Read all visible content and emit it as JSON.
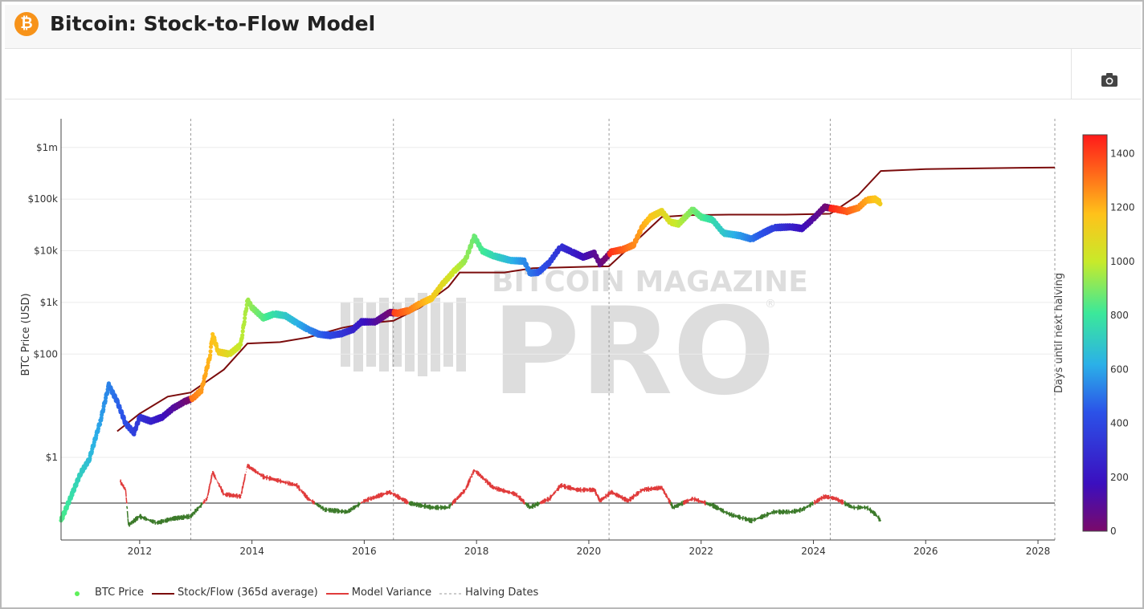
{
  "header": {
    "title": "Bitcoin: Stock-to-Flow Model",
    "logo_icon": "bitcoin-icon"
  },
  "toolbar": {
    "camera_icon": "camera-icon"
  },
  "watermark": {
    "line1": "BITCOIN MAGAZINE",
    "line2": "PRO"
  },
  "colors": {
    "price_low": "#7a0a6a",
    "price_high": "#ff1a1a",
    "sf": "#7b0c0c",
    "variance_pos": "#e03b3b",
    "variance_neg": "#3c7a2a",
    "halving": "#999999"
  },
  "chart_data": {
    "type": "scatter",
    "title": "",
    "ylabel": "BTC Price (USD)",
    "colorbar_label": "Days until next halving",
    "x_ticks": [
      "2012",
      "2014",
      "2016",
      "2018",
      "2020",
      "2022",
      "2024",
      "2026",
      "2028"
    ],
    "y_ticks": [
      "$1",
      "$100",
      "$1k",
      "$10k",
      "$100k",
      "$1m"
    ],
    "colorbar_ticks": [
      "0",
      "200",
      "400",
      "600",
      "800",
      "1000",
      "1200",
      "1400"
    ],
    "xlim": [
      2010.6,
      2028.3
    ],
    "ylim_log10": [
      -1.6,
      6.4
    ],
    "colorbar_range": [
      0,
      1470
    ],
    "halving_dates": [
      2012.91,
      2016.52,
      2020.36,
      2024.3,
      2028.3
    ],
    "series": [
      {
        "name": "BTC Price",
        "points": [
          [
            2010.6,
            0.06
          ],
          [
            2010.8,
            0.2
          ],
          [
            2010.95,
            0.5
          ],
          [
            2011.1,
            0.9
          ],
          [
            2011.3,
            5
          ],
          [
            2011.45,
            25
          ],
          [
            2011.6,
            12
          ],
          [
            2011.75,
            4.5
          ],
          [
            2011.9,
            3
          ],
          [
            2012.0,
            6
          ],
          [
            2012.2,
            5
          ],
          [
            2012.4,
            6
          ],
          [
            2012.6,
            9
          ],
          [
            2012.8,
            12
          ],
          [
            2012.95,
            14
          ],
          [
            2013.1,
            20
          ],
          [
            2013.25,
            90
          ],
          [
            2013.3,
            240
          ],
          [
            2013.4,
            110
          ],
          [
            2013.6,
            100
          ],
          [
            2013.8,
            150
          ],
          [
            2013.92,
            1100
          ],
          [
            2014.0,
            800
          ],
          [
            2014.2,
            500
          ],
          [
            2014.4,
            600
          ],
          [
            2014.6,
            550
          ],
          [
            2014.8,
            400
          ],
          [
            2015.0,
            300
          ],
          [
            2015.2,
            240
          ],
          [
            2015.4,
            230
          ],
          [
            2015.6,
            250
          ],
          [
            2015.8,
            300
          ],
          [
            2015.95,
            420
          ],
          [
            2016.2,
            420
          ],
          [
            2016.45,
            640
          ],
          [
            2016.6,
            620
          ],
          [
            2016.8,
            700
          ],
          [
            2017.0,
            950
          ],
          [
            2017.2,
            1200
          ],
          [
            2017.4,
            2300
          ],
          [
            2017.6,
            4000
          ],
          [
            2017.8,
            6500
          ],
          [
            2017.96,
            19000
          ],
          [
            2018.1,
            10000
          ],
          [
            2018.3,
            8000
          ],
          [
            2018.6,
            6500
          ],
          [
            2018.85,
            6300
          ],
          [
            2018.95,
            3700
          ],
          [
            2019.1,
            3800
          ],
          [
            2019.3,
            6000
          ],
          [
            2019.5,
            12000
          ],
          [
            2019.7,
            9500
          ],
          [
            2019.9,
            7500
          ],
          [
            2020.1,
            9000
          ],
          [
            2020.2,
            5500
          ],
          [
            2020.4,
            9500
          ],
          [
            2020.6,
            10500
          ],
          [
            2020.8,
            13000
          ],
          [
            2020.95,
            29000
          ],
          [
            2021.1,
            45000
          ],
          [
            2021.3,
            58000
          ],
          [
            2021.45,
            36000
          ],
          [
            2021.6,
            33000
          ],
          [
            2021.85,
            63000
          ],
          [
            2022.0,
            45000
          ],
          [
            2022.2,
            40000
          ],
          [
            2022.4,
            22000
          ],
          [
            2022.7,
            19500
          ],
          [
            2022.9,
            16800
          ],
          [
            2023.1,
            22000
          ],
          [
            2023.3,
            28000
          ],
          [
            2023.6,
            29000
          ],
          [
            2023.8,
            27000
          ],
          [
            2024.0,
            42000
          ],
          [
            2024.2,
            70000
          ],
          [
            2024.4,
            64000
          ],
          [
            2024.6,
            58000
          ],
          [
            2024.8,
            68000
          ],
          [
            2024.95,
            96000
          ],
          [
            2025.1,
            100000
          ],
          [
            2025.2,
            84000
          ]
        ]
      },
      {
        "name": "Stock/Flow (365d average)",
        "points": [
          [
            2011.6,
            3.2
          ],
          [
            2012.0,
            7
          ],
          [
            2012.5,
            15
          ],
          [
            2012.91,
            18
          ],
          [
            2013.5,
            50
          ],
          [
            2013.92,
            160
          ],
          [
            2014.5,
            170
          ],
          [
            2015.0,
            210
          ],
          [
            2015.6,
            320
          ],
          [
            2016.0,
            390
          ],
          [
            2016.52,
            440
          ],
          [
            2017.0,
            800
          ],
          [
            2017.5,
            2000
          ],
          [
            2017.7,
            3800
          ],
          [
            2018.5,
            3800
          ],
          [
            2019.0,
            4600
          ],
          [
            2020.0,
            4900
          ],
          [
            2020.36,
            5000
          ],
          [
            2020.8,
            14000
          ],
          [
            2021.3,
            45000
          ],
          [
            2021.8,
            49000
          ],
          [
            2022.5,
            50000
          ],
          [
            2023.5,
            50000
          ],
          [
            2024.3,
            52000
          ],
          [
            2024.8,
            120000
          ],
          [
            2025.2,
            350000
          ],
          [
            2026.0,
            380000
          ],
          [
            2027.0,
            395000
          ],
          [
            2028.3,
            410000
          ]
        ]
      },
      {
        "name": "Model Variance",
        "points": [
          [
            2011.65,
            0.5
          ],
          [
            2011.75,
            0.3
          ],
          [
            2011.8,
            -0.5
          ],
          [
            2012.0,
            -0.3
          ],
          [
            2012.3,
            -0.45
          ],
          [
            2012.6,
            -0.35
          ],
          [
            2012.91,
            -0.3
          ],
          [
            2013.2,
            0.1
          ],
          [
            2013.3,
            0.7
          ],
          [
            2013.5,
            0.2
          ],
          [
            2013.8,
            0.15
          ],
          [
            2013.92,
            0.85
          ],
          [
            2014.2,
            0.6
          ],
          [
            2014.5,
            0.5
          ],
          [
            2014.8,
            0.4
          ],
          [
            2015.0,
            0.1
          ],
          [
            2015.3,
            -0.15
          ],
          [
            2015.7,
            -0.2
          ],
          [
            2016.0,
            0.05
          ],
          [
            2016.45,
            0.25
          ],
          [
            2016.8,
            0.0
          ],
          [
            2017.2,
            -0.1
          ],
          [
            2017.5,
            -0.1
          ],
          [
            2017.8,
            0.3
          ],
          [
            2017.96,
            0.75
          ],
          [
            2018.3,
            0.35
          ],
          [
            2018.7,
            0.2
          ],
          [
            2018.95,
            -0.1
          ],
          [
            2019.3,
            0.1
          ],
          [
            2019.5,
            0.4
          ],
          [
            2019.8,
            0.3
          ],
          [
            2020.1,
            0.3
          ],
          [
            2020.2,
            0.05
          ],
          [
            2020.4,
            0.25
          ],
          [
            2020.7,
            0.05
          ],
          [
            2020.95,
            0.3
          ],
          [
            2021.3,
            0.35
          ],
          [
            2021.5,
            -0.1
          ],
          [
            2021.85,
            0.1
          ],
          [
            2022.2,
            -0.05
          ],
          [
            2022.5,
            -0.25
          ],
          [
            2022.9,
            -0.4
          ],
          [
            2023.3,
            -0.2
          ],
          [
            2023.6,
            -0.2
          ],
          [
            2023.8,
            -0.15
          ],
          [
            2024.0,
            0.0
          ],
          [
            2024.2,
            0.15
          ],
          [
            2024.4,
            0.1
          ],
          [
            2024.7,
            -0.1
          ],
          [
            2024.95,
            -0.1
          ],
          [
            2025.1,
            -0.25
          ],
          [
            2025.2,
            -0.4
          ]
        ]
      },
      {
        "name": "Halving Dates"
      }
    ]
  },
  "legend": {
    "btc_price": "BTC Price",
    "sf": "Stock/Flow (365d average)",
    "variance": "Model Variance",
    "halving": "Halving Dates"
  }
}
